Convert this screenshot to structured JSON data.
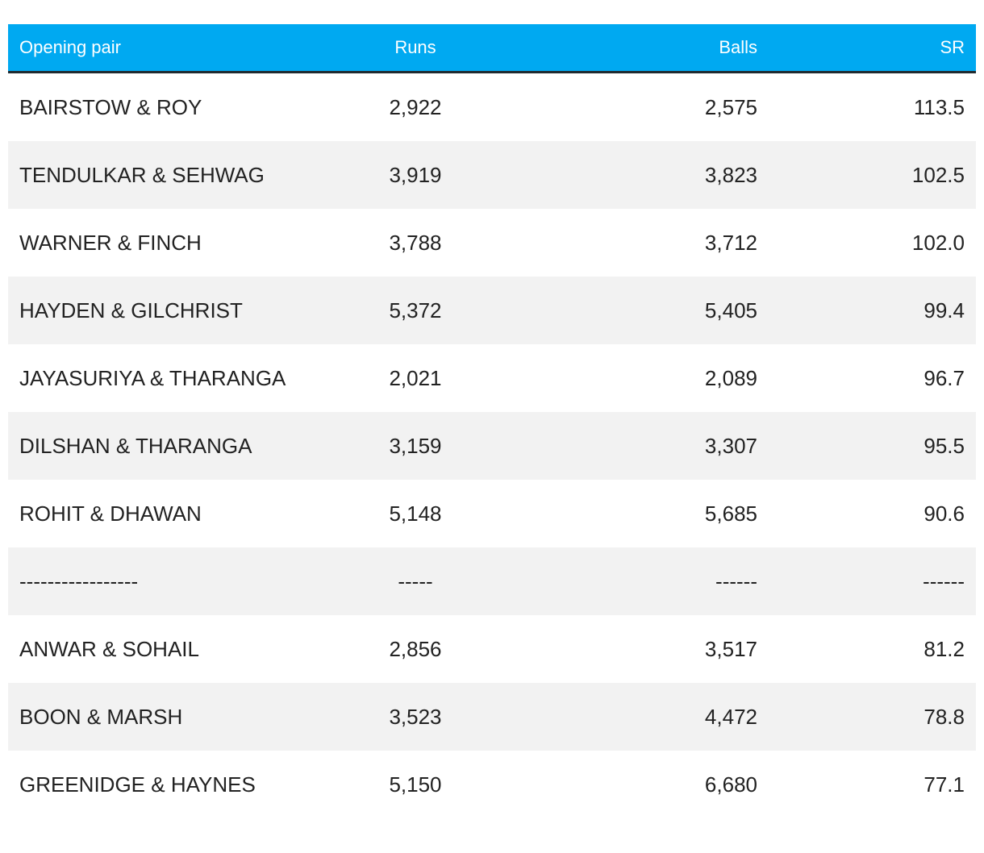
{
  "table": {
    "headers": [
      "Opening pair",
      "Runs",
      "Balls",
      "SR"
    ],
    "rows": [
      [
        "BAIRSTOW & ROY",
        "2,922",
        "2,575",
        "113.5"
      ],
      [
        "TENDULKAR & SEHWAG",
        "3,919",
        "3,823",
        "102.5"
      ],
      [
        "WARNER & FINCH",
        "3,788",
        "3,712",
        "102.0"
      ],
      [
        "HAYDEN & GILCHRIST",
        "5,372",
        "5,405",
        "99.4"
      ],
      [
        "JAYASURIYA & THARANGA",
        "2,021",
        "2,089",
        "96.7"
      ],
      [
        "DILSHAN & THARANGA",
        "3,159",
        "3,307",
        "95.5"
      ],
      [
        "ROHIT & DHAWAN",
        "5,148",
        "5,685",
        "90.6"
      ],
      [
        "-----------------",
        "-----",
        "------",
        "------"
      ],
      [
        "ANWAR & SOHAIL",
        "2,856",
        "3,517",
        "81.2"
      ],
      [
        "BOON & MARSH",
        "3,523",
        "4,472",
        "78.8"
      ],
      [
        "GREENIDGE & HAYNES",
        "5,150",
        "6,680",
        "77.1"
      ]
    ]
  }
}
